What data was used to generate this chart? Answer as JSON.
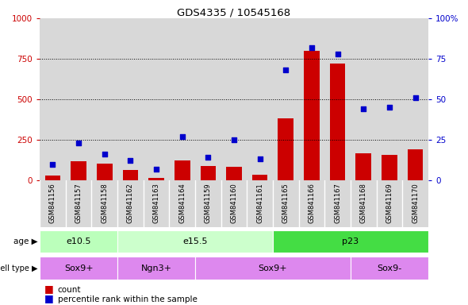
{
  "title": "GDS4335 / 10545168",
  "samples": [
    "GSM841156",
    "GSM841157",
    "GSM841158",
    "GSM841162",
    "GSM841163",
    "GSM841164",
    "GSM841159",
    "GSM841160",
    "GSM841161",
    "GSM841165",
    "GSM841166",
    "GSM841167",
    "GSM841168",
    "GSM841169",
    "GSM841170"
  ],
  "counts": [
    30,
    115,
    105,
    65,
    15,
    120,
    90,
    85,
    35,
    380,
    800,
    720,
    165,
    155,
    190
  ],
  "percentile": [
    10,
    23,
    16,
    12,
    7,
    27,
    14,
    25,
    13,
    68,
    82,
    78,
    44,
    45,
    51
  ],
  "age_groups": [
    {
      "label": "e10.5",
      "start": 0,
      "end": 3,
      "color": "#bbffbb"
    },
    {
      "label": "e15.5",
      "start": 3,
      "end": 9,
      "color": "#ccffcc"
    },
    {
      "label": "p23",
      "start": 9,
      "end": 15,
      "color": "#44dd44"
    }
  ],
  "cell_groups": [
    {
      "label": "Sox9+",
      "start": 0,
      "end": 3
    },
    {
      "label": "Ngn3+",
      "start": 3,
      "end": 6
    },
    {
      "label": "Sox9+",
      "start": 6,
      "end": 12
    },
    {
      "label": "Sox9-",
      "start": 12,
      "end": 15
    }
  ],
  "cell_color": "#dd88ee",
  "bar_color": "#cc0000",
  "dot_color": "#0000cc",
  "left_axis_color": "#cc0000",
  "right_axis_color": "#0000cc",
  "ylim_left": [
    0,
    1000
  ],
  "ylim_right": [
    0,
    100
  ],
  "yticks_left": [
    0,
    250,
    500,
    750,
    1000
  ],
  "yticks_right": [
    0,
    25,
    50,
    75,
    100
  ],
  "col_bg": "#d8d8d8",
  "legend_count_label": "count",
  "legend_pct_label": "percentile rank within the sample"
}
